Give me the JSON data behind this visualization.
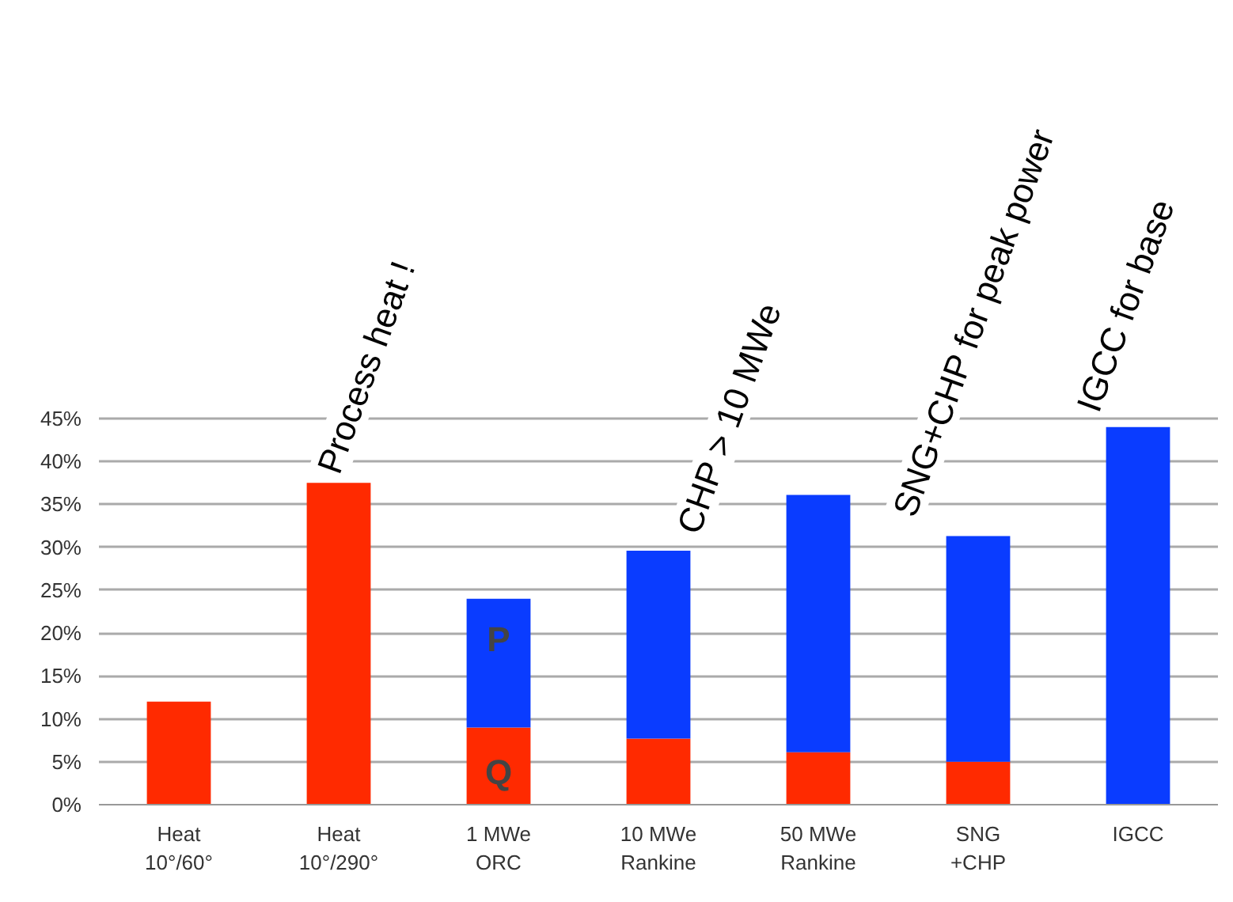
{
  "chart_data": {
    "type": "bar",
    "stacked": true,
    "categories": [
      "Heat\n10°/60°",
      "Heat\n10°/290°",
      "1 MWe\nORC",
      "10 MWe\nRankine",
      "50 MWe\nRankine",
      "SNG\n+CHP",
      "IGCC"
    ],
    "series": [
      {
        "color": "#ff2a00",
        "values": [
          12,
          37.5,
          9,
          7.7,
          6.1,
          5,
          0
        ]
      },
      {
        "color": "#0a3cff",
        "values": [
          null,
          null,
          15,
          21.9,
          30,
          26.3,
          44
        ]
      }
    ],
    "ylim": [
      0,
      45
    ],
    "yticks": [
      {
        "value": 0,
        "label": "0%"
      },
      {
        "value": 5,
        "label": "5%"
      },
      {
        "value": 10,
        "label": "10%"
      },
      {
        "value": 15,
        "label": "15%"
      },
      {
        "value": 20,
        "label": "20%"
      },
      {
        "value": 25,
        "label": "25%"
      },
      {
        "value": 30,
        "label": "30%"
      },
      {
        "value": 35,
        "label": "35%"
      },
      {
        "value": 40,
        "label": "40%"
      },
      {
        "value": 45,
        "label": "45%"
      }
    ],
    "grid": "y",
    "annotations": [
      "Process heat !",
      "CHP > 10 MWe",
      "SNG+CHP for  peak power",
      "IGCC for base",
      "P",
      "Q"
    ]
  }
}
